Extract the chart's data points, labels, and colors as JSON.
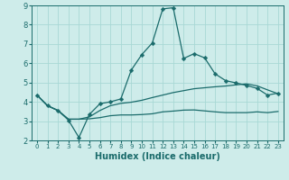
{
  "xlabel": "Humidex (Indice chaleur)",
  "bg_color": "#ceecea",
  "grid_color": "#a8d8d5",
  "line_color": "#1a6b6b",
  "xlim": [
    -0.5,
    23.5
  ],
  "ylim": [
    2,
    9
  ],
  "yticks": [
    2,
    3,
    4,
    5,
    6,
    7,
    8,
    9
  ],
  "xticks": [
    0,
    1,
    2,
    3,
    4,
    5,
    6,
    7,
    8,
    9,
    10,
    11,
    12,
    13,
    14,
    15,
    16,
    17,
    18,
    19,
    20,
    21,
    22,
    23
  ],
  "line1_x": [
    0,
    1,
    2,
    3,
    4,
    5,
    6,
    7,
    8,
    9,
    10,
    11,
    12,
    13,
    14,
    15,
    16,
    17,
    18,
    19,
    20,
    21,
    22,
    23
  ],
  "line1_y": [
    4.35,
    3.8,
    3.55,
    3.05,
    2.15,
    3.35,
    3.9,
    4.0,
    4.15,
    5.65,
    6.45,
    7.05,
    8.82,
    8.88,
    6.25,
    6.5,
    6.28,
    5.45,
    5.1,
    4.98,
    4.85,
    4.7,
    4.35,
    4.45
  ],
  "line2_x": [
    0,
    1,
    2,
    3,
    4,
    5,
    6,
    7,
    8,
    9,
    10,
    11,
    12,
    13,
    14,
    15,
    16,
    17,
    18,
    19,
    20,
    21,
    22,
    23
  ],
  "line2_y": [
    4.35,
    3.8,
    3.55,
    3.1,
    3.1,
    3.22,
    3.55,
    3.8,
    3.92,
    3.98,
    4.08,
    4.22,
    4.35,
    4.48,
    4.58,
    4.68,
    4.73,
    4.78,
    4.82,
    4.88,
    4.93,
    4.83,
    4.62,
    4.42
  ],
  "line3_x": [
    0,
    1,
    2,
    3,
    4,
    5,
    6,
    7,
    8,
    9,
    10,
    11,
    12,
    13,
    14,
    15,
    16,
    17,
    18,
    19,
    20,
    21,
    22,
    23
  ],
  "line3_y": [
    4.35,
    3.8,
    3.55,
    3.1,
    3.1,
    3.12,
    3.18,
    3.28,
    3.32,
    3.32,
    3.34,
    3.38,
    3.48,
    3.52,
    3.57,
    3.58,
    3.53,
    3.48,
    3.44,
    3.44,
    3.44,
    3.48,
    3.44,
    3.5
  ],
  "marker_size": 2.5,
  "line_width": 0.9
}
